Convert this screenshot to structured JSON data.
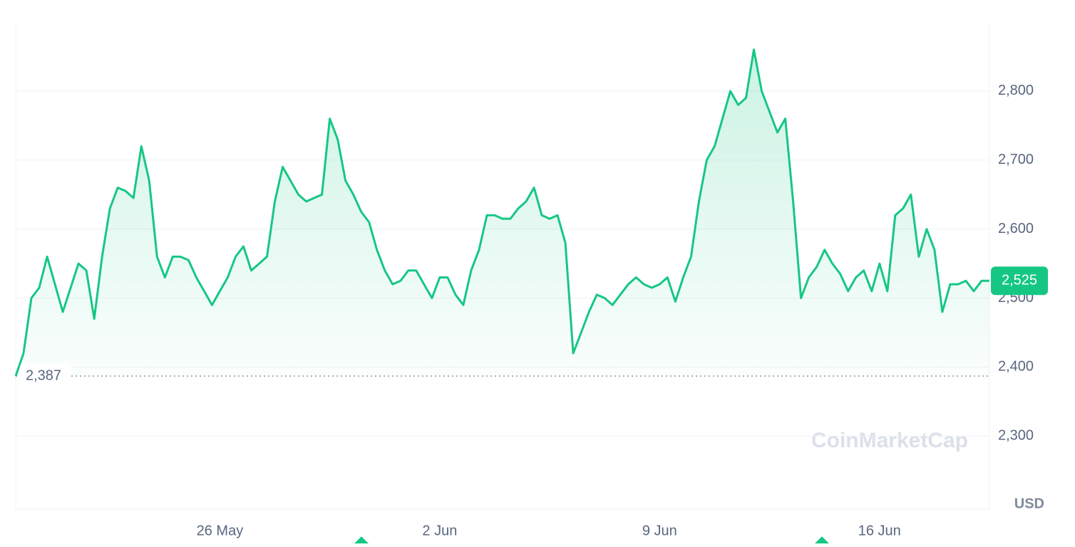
{
  "chart_data": {
    "type": "line",
    "currency": "USD",
    "watermark": "CoinMarketCap",
    "categories": [
      null,
      null,
      null,
      null,
      null,
      null,
      null,
      null,
      null,
      null,
      null,
      null,
      null,
      null,
      null,
      null,
      null,
      null,
      null,
      null,
      null,
      null,
      null,
      null,
      null,
      null,
      "26 May",
      null,
      null,
      null,
      null,
      null,
      null,
      null,
      null,
      null,
      null,
      null,
      null,
      null,
      null,
      null,
      null,
      null,
      null,
      null,
      null,
      null,
      null,
      null,
      null,
      null,
      null,
      null,
      "2 Jun",
      null,
      null,
      null,
      null,
      null,
      null,
      null,
      null,
      null,
      null,
      null,
      null,
      null,
      null,
      null,
      null,
      null,
      null,
      null,
      null,
      null,
      null,
      null,
      null,
      null,
      null,
      null,
      "9 Jun",
      null,
      null,
      null,
      null,
      null,
      null,
      null,
      null,
      null,
      null,
      null,
      null,
      null,
      null,
      null,
      null,
      null,
      null,
      null,
      null,
      null,
      null,
      null,
      null,
      null,
      null,
      null,
      "16 Jun",
      null,
      null,
      null,
      null,
      null,
      null,
      null,
      null,
      null,
      null,
      null,
      null,
      null,
      null
    ],
    "series": [
      {
        "color": "#16c784",
        "values": [
          2387,
          2420,
          2500,
          2515,
          2560,
          2520,
          2480,
          2515,
          2550,
          2540,
          2470,
          2560,
          2630,
          2660,
          2655,
          2645,
          2720,
          2670,
          2560,
          2530,
          2560,
          2560,
          2555,
          2530,
          2510,
          2490,
          2510,
          2530,
          2560,
          2575,
          2540,
          2550,
          2560,
          2640,
          2690,
          2670,
          2650,
          2640,
          2645,
          2650,
          2760,
          2730,
          2670,
          2650,
          2625,
          2610,
          2570,
          2540,
          2520,
          2525,
          2540,
          2540,
          2520,
          2500,
          2530,
          2530,
          2505,
          2490,
          2540,
          2570,
          2620,
          2620,
          2615,
          2615,
          2630,
          2640,
          2660,
          2620,
          2615,
          2620,
          2580,
          2420,
          2450,
          2480,
          2505,
          2500,
          2490,
          2505,
          2520,
          2530,
          2520,
          2515,
          2520,
          2530,
          2495,
          2530,
          2560,
          2640,
          2700,
          2720,
          2760,
          2800,
          2780,
          2790,
          2860,
          2800,
          2770,
          2740,
          2760,
          2640,
          2500,
          2530,
          2545,
          2570,
          2550,
          2535,
          2510,
          2530,
          2540,
          2510,
          2550,
          2510,
          2620,
          2630,
          2650,
          2560,
          2600,
          2570,
          2480,
          2520,
          2520,
          2525,
          2510,
          2525,
          2525
        ]
      }
    ],
    "reference": {
      "value": 2387,
      "label": "2,387"
    },
    "last_price": {
      "value": 2525,
      "label": "2,525"
    },
    "ylim": [
      2194,
      2901
    ],
    "yticks": [
      {
        "value": 2300,
        "label": "2,300"
      },
      {
        "value": 2400,
        "label": "2,400"
      },
      {
        "value": 2500,
        "label": "2,500"
      },
      {
        "value": 2600,
        "label": "2,600"
      },
      {
        "value": 2700,
        "label": "2,700"
      },
      {
        "value": 2800,
        "label": "2,800"
      }
    ],
    "grid": true
  }
}
